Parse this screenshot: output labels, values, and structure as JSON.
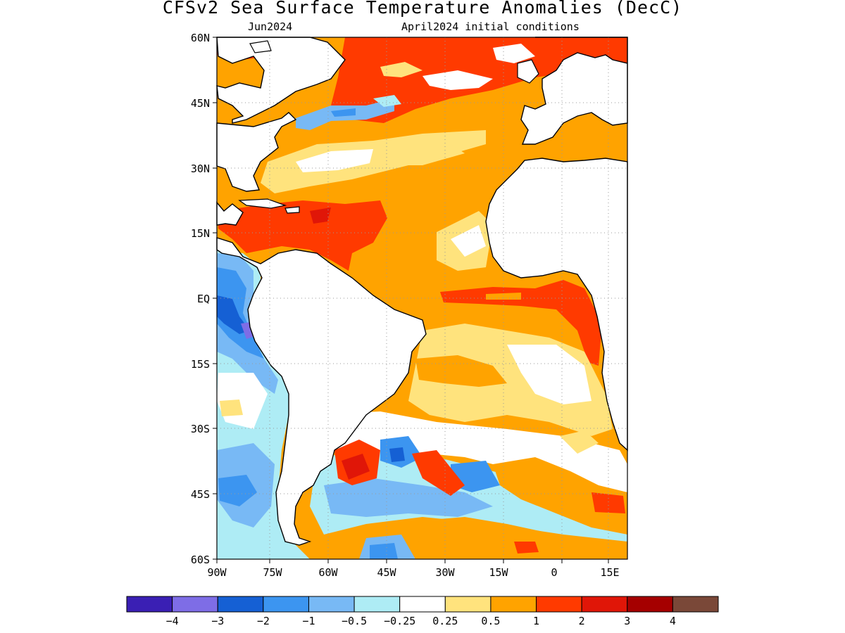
{
  "title": "CFSv2 Sea Surface Temperature Anomalies (DecC)",
  "subtitle_left": "Jun2024",
  "subtitle_right": "April2024 initial conditions",
  "map": {
    "lon_range": [
      -90,
      15
    ],
    "lat_range": [
      -60,
      60
    ],
    "lat_ticks": [
      "60N",
      "45N",
      "30N",
      "15N",
      "EQ",
      "15S",
      "30S",
      "45S",
      "60S"
    ],
    "lon_ticks": [
      "90W",
      "75W",
      "60W",
      "45W",
      "30W",
      "15W",
      "0",
      "15E"
    ],
    "gridlines": true,
    "land_color": "#ffffff",
    "coast_color": "#000000"
  },
  "colorbar": {
    "colors": [
      "#3a1fb4",
      "#7e6de6",
      "#1560d4",
      "#3c95f0",
      "#78b9f5",
      "#aeecf5",
      "#ffffff",
      "#ffe37d",
      "#ffa300",
      "#ff3a00",
      "#e01608",
      "#a50000",
      "#7a4838"
    ],
    "labels": [
      "-4",
      "-3",
      "-2",
      "-1",
      "-0.5",
      "-0.25",
      "0.25",
      "0.5",
      "1",
      "2",
      "3",
      "4"
    ]
  }
}
